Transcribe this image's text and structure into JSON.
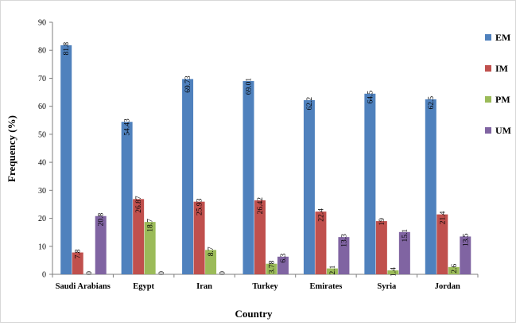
{
  "chart_data": {
    "type": "bar",
    "xlabel": "Country",
    "ylabel": "Frequency (%)",
    "ylim": [
      0,
      90
    ],
    "yticks": [
      0,
      10,
      20,
      30,
      40,
      50,
      60,
      70,
      80,
      90
    ],
    "grid": false,
    "legend_position": "right",
    "categories": [
      "Saudi Arabians",
      "Egypt",
      "Iran",
      "Turkey",
      "Emirates",
      "Syria",
      "Jordan"
    ],
    "series": [
      {
        "name": "EM",
        "color": "#4f81bd",
        "values": [
          81.8,
          54.43,
          69.73,
          69.01,
          62.2,
          64.5,
          62.5
        ],
        "labels": [
          "81.8",
          "54.43",
          "69.73",
          "69.01",
          "62.2",
          "64.5",
          "62.5"
        ]
      },
      {
        "name": "IM",
        "color": "#c0504d",
        "values": [
          7.8,
          26.87,
          25.93,
          26.42,
          22.4,
          19,
          21.4
        ],
        "labels": [
          "7.8",
          "26.87",
          "25.93",
          "26.42",
          "22.4",
          "19",
          "21.4"
        ]
      },
      {
        "name": "PM",
        "color": "#9bbb59",
        "values": [
          0,
          18.7,
          8.7,
          3.78,
          2.1,
          1.4,
          2.6
        ],
        "labels": [
          "0",
          "18.7",
          "8.7",
          "3.78",
          "2.1",
          "1.4",
          "2.6"
        ]
      },
      {
        "name": "UM",
        "color": "#8064a2",
        "values": [
          20.8,
          0,
          0,
          6.3,
          13.3,
          15.1,
          13.5
        ],
        "labels": [
          "20.8",
          "0",
          "0",
          "6.3",
          "13.3",
          "15.1",
          "13.5"
        ]
      }
    ]
  }
}
